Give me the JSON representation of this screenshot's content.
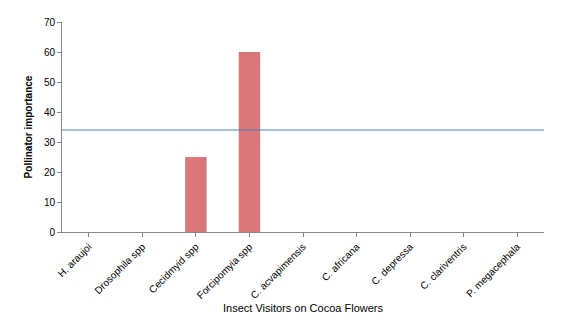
{
  "chart_data": {
    "type": "bar",
    "x_label": "Insect Visitors on Cocoa Flowers",
    "y_label": "Pollinator importance",
    "categories": [
      "H. araujoi",
      "Drosophila spp",
      "Cecidmyid spp",
      "Forcipomyia spp",
      "C. acvapimensis",
      "C. africana",
      "C. depressa",
      "C. clariventris",
      "P. megacephala"
    ],
    "values": [
      0,
      0,
      25,
      60,
      0,
      0,
      0,
      0,
      0
    ],
    "color": "#d9777a",
    "threshold": 34,
    "threshold_color": "#4a7ebb",
    "ylim": [
      0,
      70
    ],
    "yticks": [
      0,
      10,
      20,
      30,
      40,
      50,
      60,
      70
    ],
    "grid": false
  }
}
